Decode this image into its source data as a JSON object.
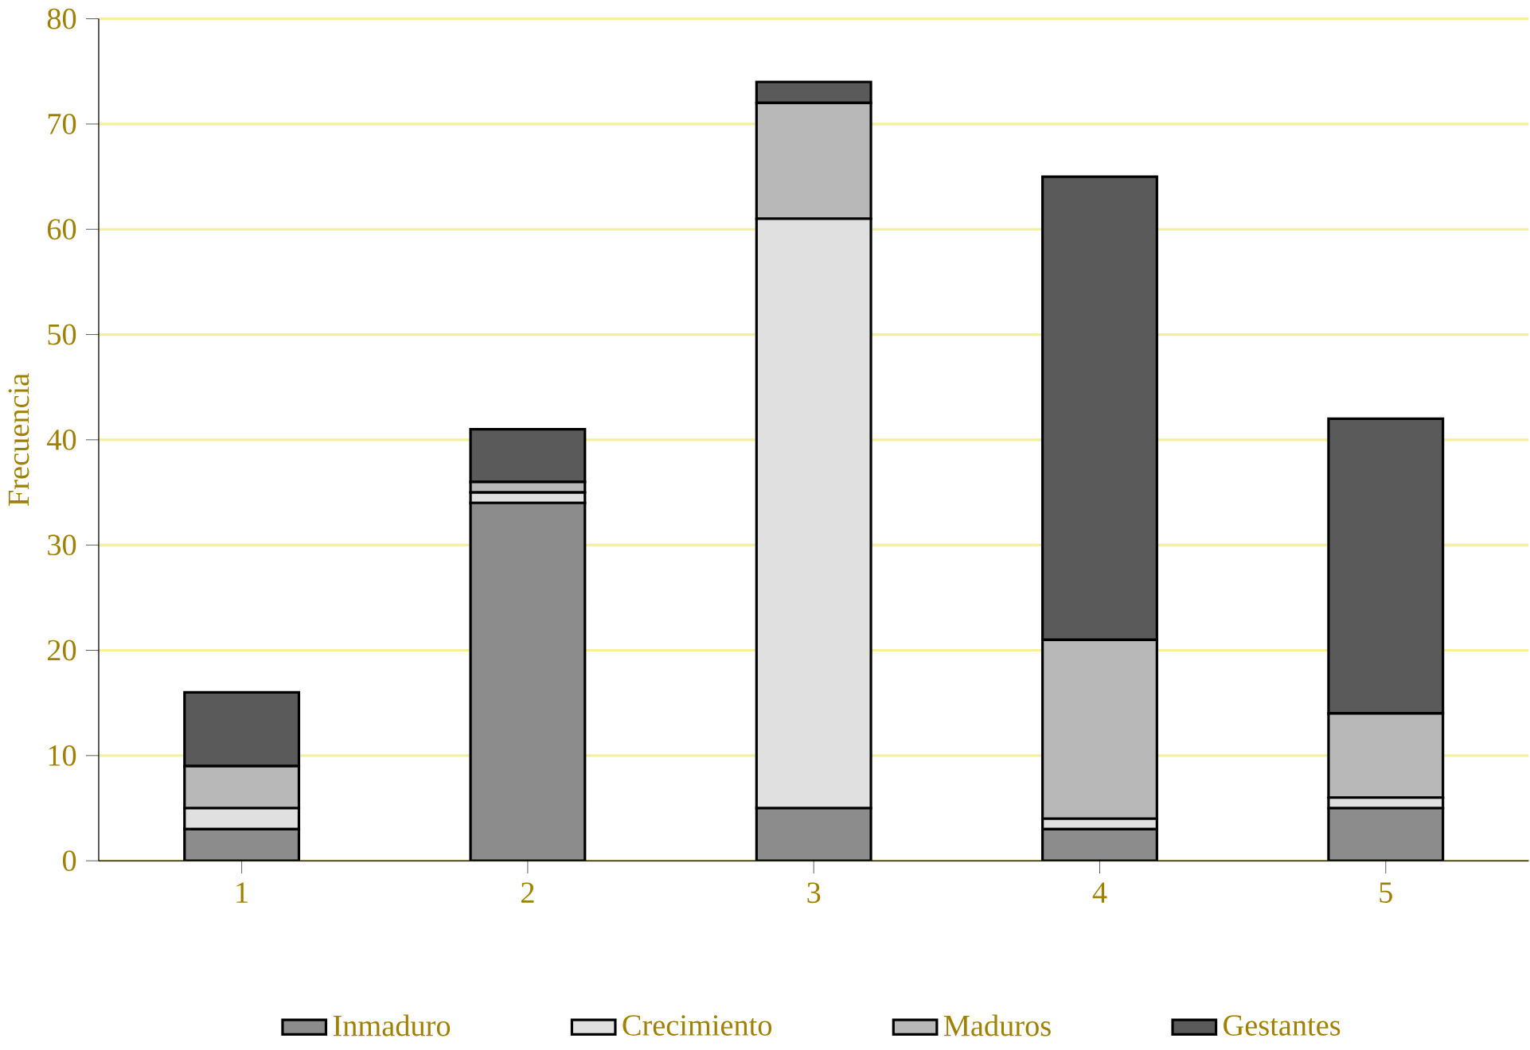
{
  "chart_data": {
    "type": "bar",
    "stacked": true,
    "ylabel": "Frecuencia",
    "categories": [
      "1",
      "2",
      "3",
      "4",
      "5"
    ],
    "series": [
      {
        "name": "Inmaduro",
        "color": "#8c8c8c",
        "values": [
          3,
          34,
          5,
          3,
          5
        ]
      },
      {
        "name": "Crecimiento",
        "color": "#e0e0e0",
        "values": [
          2,
          1,
          56,
          1,
          1
        ]
      },
      {
        "name": "Maduros",
        "color": "#b8b8b8",
        "values": [
          4,
          1,
          11,
          17,
          8
        ]
      },
      {
        "name": "Gestantes",
        "color": "#5a5a5a",
        "values": [
          7,
          5,
          2,
          44,
          28
        ]
      }
    ],
    "ylim": [
      0,
      80
    ],
    "yticks": [
      0,
      10,
      20,
      30,
      40,
      50,
      60,
      70,
      80
    ],
    "grid": "y",
    "legend": "bottom"
  }
}
